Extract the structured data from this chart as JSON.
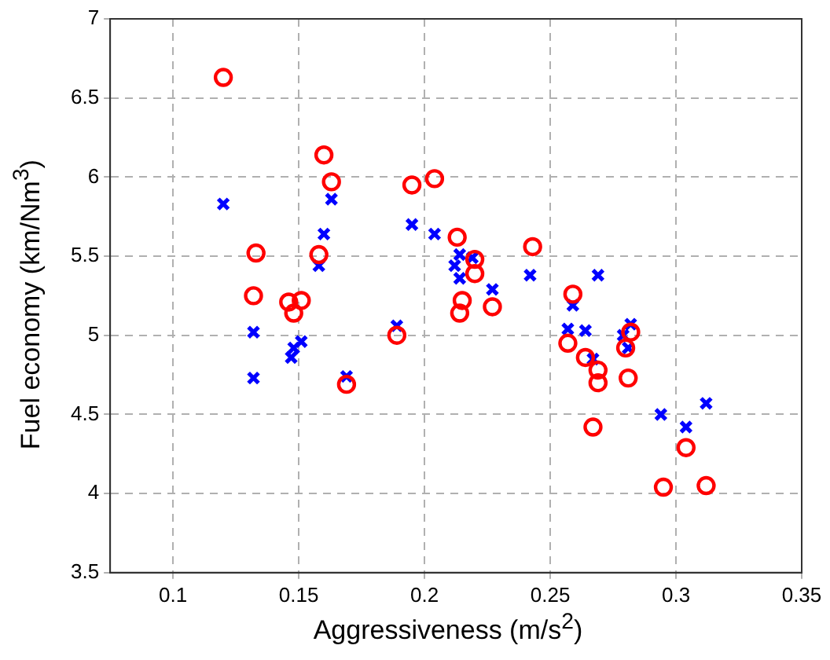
{
  "chart_data": {
    "type": "scatter",
    "xlabel": "Aggressiveness (m/s$^{2}$)",
    "ylabel": "Fuel economy (km/Nm$^{3}$)",
    "xlim": [
      0.075,
      0.35
    ],
    "ylim": [
      3.5,
      7
    ],
    "xticks": [
      0.1,
      0.15,
      0.2,
      0.25,
      0.3,
      0.35
    ],
    "yticks": [
      3.5,
      4,
      4.5,
      5,
      5.5,
      6,
      6.5,
      7
    ],
    "grid": true,
    "legend": false,
    "series": [
      {
        "color": "#ff0000",
        "marker": "circle",
        "x": [
          0.12,
          0.16,
          0.163,
          0.195,
          0.204,
          0.213,
          0.133,
          0.158,
          0.132,
          0.146,
          0.151,
          0.148,
          0.22,
          0.22,
          0.243,
          0.259,
          0.215,
          0.227,
          0.214,
          0.169,
          0.189,
          0.257,
          0.264,
          0.269,
          0.269,
          0.28,
          0.282,
          0.281,
          0.267,
          0.304,
          0.295,
          0.312
        ],
        "values": [
          6.63,
          6.14,
          5.97,
          5.95,
          5.99,
          5.62,
          5.52,
          5.51,
          5.25,
          5.21,
          5.22,
          5.14,
          5.48,
          5.39,
          5.56,
          5.26,
          5.22,
          5.18,
          5.14,
          4.69,
          5.0,
          4.95,
          4.86,
          4.78,
          4.7,
          4.92,
          5.02,
          4.73,
          4.42,
          4.29,
          4.04,
          4.05
        ]
      },
      {
        "color": "#0000ff",
        "marker": "cross",
        "x": [
          0.12,
          0.163,
          0.16,
          0.158,
          0.195,
          0.204,
          0.214,
          0.212,
          0.214,
          0.219,
          0.227,
          0.242,
          0.269,
          0.259,
          0.132,
          0.132,
          0.147,
          0.148,
          0.151,
          0.169,
          0.189,
          0.257,
          0.264,
          0.267,
          0.279,
          0.282,
          0.281,
          0.294,
          0.304,
          0.312
        ],
        "values": [
          5.83,
          5.86,
          5.64,
          5.44,
          5.7,
          5.64,
          5.51,
          5.44,
          5.36,
          5.49,
          5.29,
          5.38,
          5.38,
          5.19,
          5.02,
          4.73,
          4.86,
          4.92,
          4.96,
          4.74,
          5.06,
          5.04,
          5.03,
          4.85,
          5.0,
          5.07,
          4.92,
          4.5,
          4.42,
          4.57
        ]
      }
    ]
  }
}
